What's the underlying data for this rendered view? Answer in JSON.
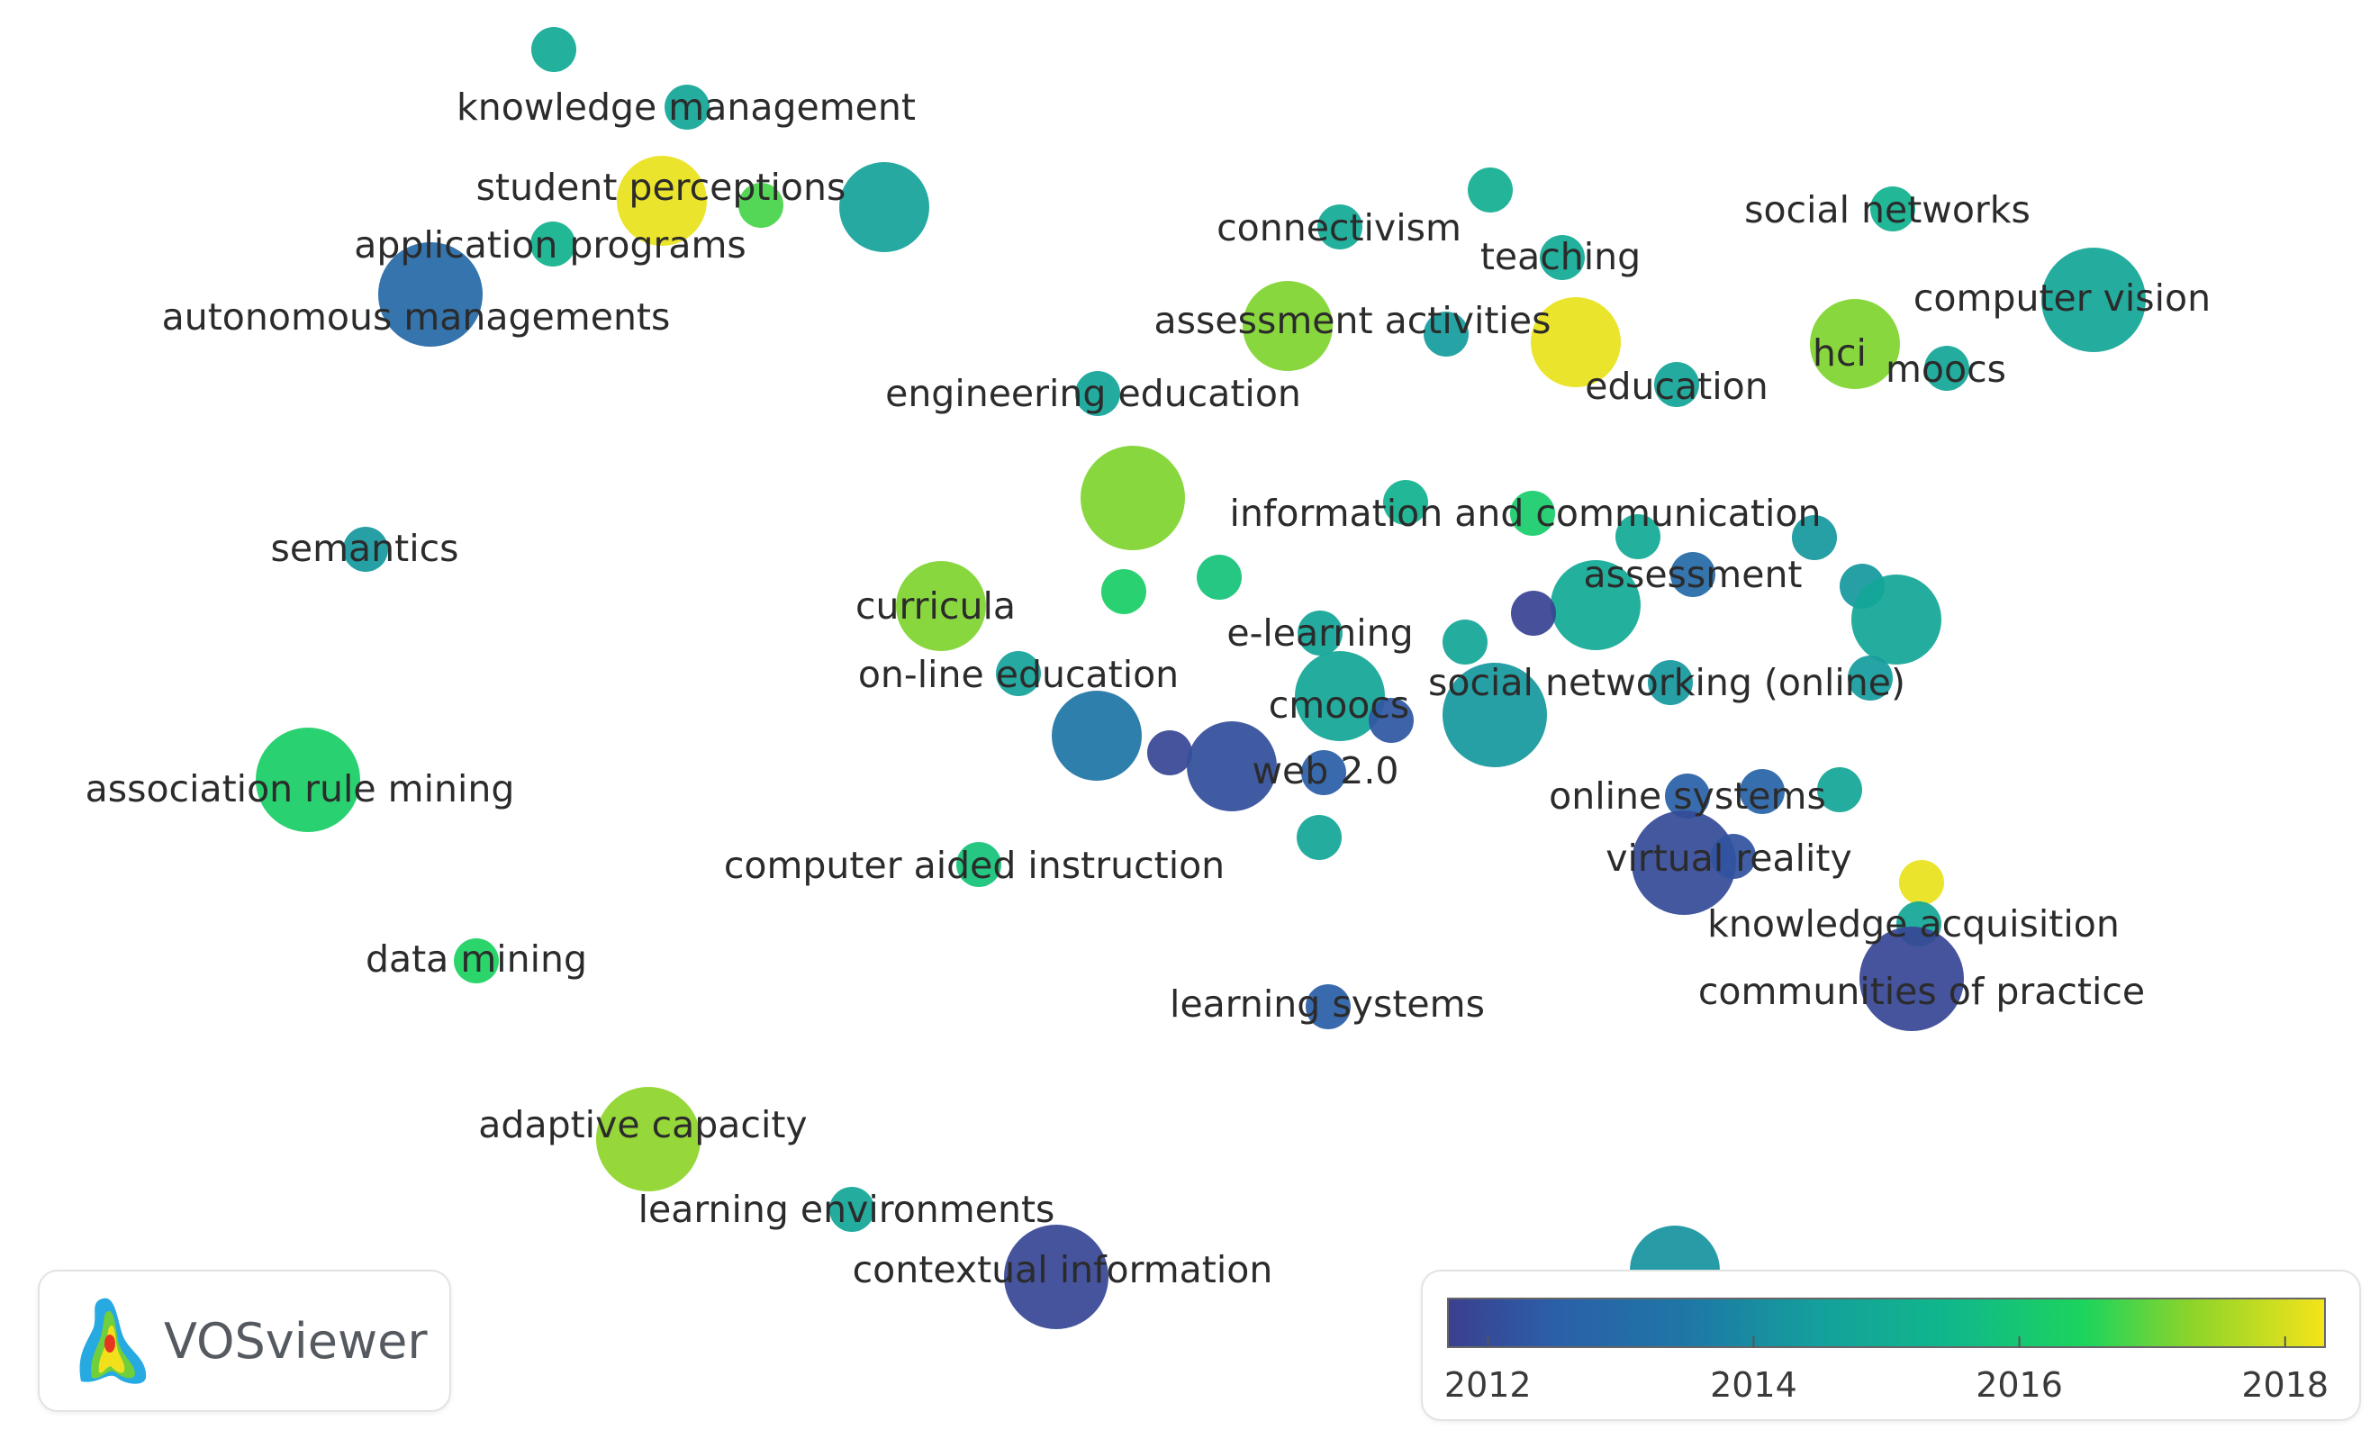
{
  "chart_data": {
    "type": "scatter",
    "title": "",
    "color_scale": {
      "min": 2011.7,
      "max": 2018.3,
      "tick_labels": [
        "2012",
        "2014",
        "2016",
        "2018"
      ],
      "tick_values": [
        2012,
        2014,
        2016,
        2018
      ],
      "stops": [
        {
          "year": 2011.7,
          "color": "#3b3f8f"
        },
        {
          "year": 2012.5,
          "color": "#2b5fa8"
        },
        {
          "year": 2013.5,
          "color": "#1e77a6"
        },
        {
          "year": 2014.5,
          "color": "#14a09c"
        },
        {
          "year": 2015.5,
          "color": "#10b88a"
        },
        {
          "year": 2016.5,
          "color": "#1dd45c"
        },
        {
          "year": 2017.3,
          "color": "#8ed42a"
        },
        {
          "year": 2018.3,
          "color": "#f4e41a"
        }
      ]
    },
    "nodes": [
      {
        "label": "knowledge management",
        "year": 2014.9,
        "weight": 1
      },
      {
        "label": "",
        "year": 2014.8,
        "weight": 1
      },
      {
        "label": "student perceptions",
        "year": 2018.2,
        "weight": 2
      },
      {
        "label": "",
        "year": 2016.8,
        "weight": 1
      },
      {
        "label": "",
        "year": 2014.6,
        "weight": 2
      },
      {
        "label": "application programs",
        "year": 2015.3,
        "weight": 1
      },
      {
        "label": "autonomous managements",
        "year": 2012.9,
        "weight": 3
      },
      {
        "label": "connectivism",
        "year": 2014.9,
        "weight": 1
      },
      {
        "label": "",
        "year": 2015.1,
        "weight": 1
      },
      {
        "label": "teaching",
        "year": 2014.9,
        "weight": 1
      },
      {
        "label": "social networks",
        "year": 2015.2,
        "weight": 1
      },
      {
        "label": "computer vision",
        "year": 2014.8,
        "weight": 3
      },
      {
        "label": "assessment activities",
        "year": 2017.2,
        "weight": 2
      },
      {
        "label": "",
        "year": 2014.4,
        "weight": 1
      },
      {
        "label": "",
        "year": 2018.2,
        "weight": 2
      },
      {
        "label": "education",
        "year": 2014.7,
        "weight": 1
      },
      {
        "label": "hci",
        "year": 2017.2,
        "weight": 2
      },
      {
        "label": "moocs",
        "year": 2014.8,
        "weight": 1
      },
      {
        "label": "engineering education",
        "year": 2014.7,
        "weight": 1
      },
      {
        "label": "",
        "year": 2017.2,
        "weight": 3
      },
      {
        "label": "information and communication",
        "year": 2015.2,
        "weight": 1
      },
      {
        "label": "",
        "year": 2016.2,
        "weight": 1
      },
      {
        "label": "semantics",
        "year": 2014.3,
        "weight": 1
      },
      {
        "label": "curricula",
        "year": 2017.2,
        "weight": 2
      },
      {
        "label": "",
        "year": 2016.3,
        "weight": 1
      },
      {
        "label": "",
        "year": 2015.9,
        "weight": 1
      },
      {
        "label": "assessment",
        "year": 2013.0,
        "weight": 1
      },
      {
        "label": "",
        "year": 2014.9,
        "weight": 1
      },
      {
        "label": "",
        "year": 2014.9,
        "weight": 2
      },
      {
        "label": "",
        "year": 2011.8,
        "weight": 1
      },
      {
        "label": "",
        "year": 2014.3,
        "weight": 1
      },
      {
        "label": "",
        "year": 2014.3,
        "weight": 1
      },
      {
        "label": "",
        "year": 2014.8,
        "weight": 2
      },
      {
        "label": "e-learning",
        "year": 2014.7,
        "weight": 1
      },
      {
        "label": "",
        "year": 2014.8,
        "weight": 1
      },
      {
        "label": "on-line education",
        "year": 2014.6,
        "weight": 1
      },
      {
        "label": "social networking (online)",
        "year": 2014.3,
        "weight": 1
      },
      {
        "label": "",
        "year": 2014.4,
        "weight": 1
      },
      {
        "label": "cmoocs",
        "year": 2014.8,
        "weight": 2
      },
      {
        "label": "",
        "year": 2014.3,
        "weight": 3
      },
      {
        "label": "",
        "year": 2012.3,
        "weight": 1
      },
      {
        "label": "",
        "year": 2013.4,
        "weight": 2
      },
      {
        "label": "",
        "year": 2011.9,
        "weight": 1
      },
      {
        "label": "web 2.0",
        "year": 2012.1,
        "weight": 2
      },
      {
        "label": "",
        "year": 2012.5,
        "weight": 1
      },
      {
        "label": "association rule mining",
        "year": 2016.3,
        "weight": 3
      },
      {
        "label": "online systems",
        "year": 2012.6,
        "weight": 1
      },
      {
        "label": "",
        "year": 2012.7,
        "weight": 1
      },
      {
        "label": "",
        "year": 2014.8,
        "weight": 1
      },
      {
        "label": "",
        "year": 2014.8,
        "weight": 1
      },
      {
        "label": "computer aided instruction",
        "year": 2015.9,
        "weight": 1
      },
      {
        "label": "virtual reality",
        "year": 2012.0,
        "weight": 3
      },
      {
        "label": "",
        "year": 2012.2,
        "weight": 1
      },
      {
        "label": "",
        "year": 2018.2,
        "weight": 1
      },
      {
        "label": "knowledge acquisition",
        "year": 2014.8,
        "weight": 1
      },
      {
        "label": "communities of practice",
        "year": 2011.9,
        "weight": 3
      },
      {
        "label": "data mining",
        "year": 2016.4,
        "weight": 1
      },
      {
        "label": "learning systems",
        "year": 2012.5,
        "weight": 1
      },
      {
        "label": "adaptive capacity",
        "year": 2017.3,
        "weight": 3
      },
      {
        "label": "learning environments",
        "year": 2014.8,
        "weight": 1
      },
      {
        "label": "contextual information",
        "year": 2011.9,
        "weight": 3
      },
      {
        "label": "",
        "year": 2014.2,
        "weight": 2
      }
    ]
  },
  "logo": {
    "name": "VOSviewer"
  }
}
